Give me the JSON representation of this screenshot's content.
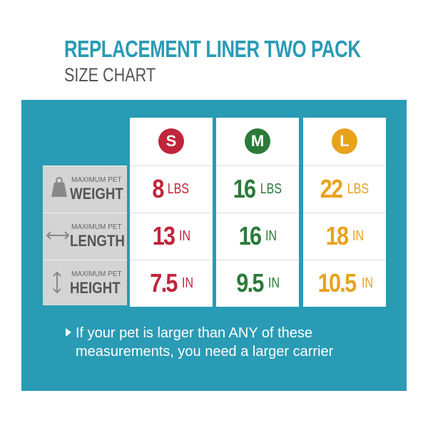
{
  "header": {
    "title": "REPLACEMENT LINER TWO PACK",
    "subtitle": "SIZE CHART"
  },
  "table": {
    "sizes": [
      {
        "label": "S",
        "color": "#c0253a"
      },
      {
        "label": "M",
        "color": "#2b7a3a"
      },
      {
        "label": "L",
        "color": "#e8a21c"
      }
    ],
    "rows": [
      {
        "caption": "MAXIMUM PET",
        "label": "WEIGHT",
        "unit": "LBS",
        "values": [
          8,
          16,
          22
        ]
      },
      {
        "caption": "MAXIMUM PET",
        "label": "LENGTH",
        "unit": "IN",
        "values": [
          13,
          16,
          18
        ]
      },
      {
        "caption": "MAXIMUM PET",
        "label": "HEIGHT",
        "unit": "IN",
        "values": [
          7.5,
          9.5,
          10.5
        ]
      }
    ]
  },
  "note": "If your pet is larger than ANY of these measurements, you need a larger carrier"
}
